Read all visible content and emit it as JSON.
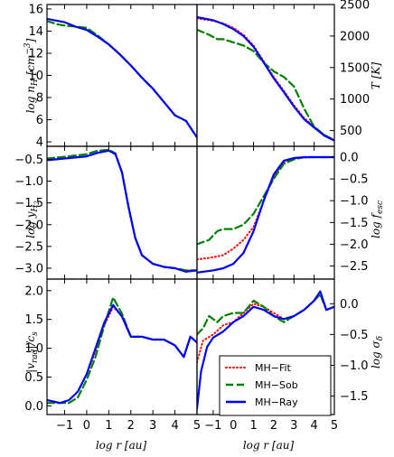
{
  "figure": {
    "legend": {
      "entries": [
        "MH−Fit",
        "MH−Sob",
        "MH−Ray"
      ],
      "placement": "lower-right of bottom-right panel"
    },
    "colors": {
      "Fit": "#ff0000",
      "Sob": "#008000",
      "Ray": "#0000ff"
    }
  },
  "chart_data": [
    {
      "type": "line",
      "panel": "top-left",
      "ylabel": "log n_H [cm^-3]",
      "xlim": [
        -1.8,
        5
      ],
      "ylim": [
        3.6,
        16.4
      ],
      "yticks": [
        4,
        6,
        8,
        10,
        12,
        14,
        16
      ],
      "ytick_labels": [
        "4",
        "6",
        "8",
        "10",
        "12",
        "14",
        "16"
      ],
      "series": [
        {
          "name": "MH−Fit",
          "style": "dotted",
          "x": [
            -1.8,
            -1,
            -0.5,
            0,
            0.5,
            1,
            1.5,
            2,
            2.5,
            3,
            3.5,
            4,
            4.5,
            5
          ],
          "y": [
            15.1,
            14.8,
            14.4,
            14.1,
            13.5,
            12.8,
            11.9,
            10.9,
            9.8,
            8.8,
            7.6,
            6.4,
            5.9,
            4.4
          ]
        },
        {
          "name": "MH−Sob",
          "style": "dashed",
          "x": [
            -1.8,
            -1.3,
            -1,
            -0.5,
            0,
            0.5,
            1,
            1.5,
            2,
            2.5,
            3,
            3.5,
            4,
            4.5,
            5
          ],
          "y": [
            14.9,
            14.6,
            14.5,
            14.4,
            14.3,
            13.6,
            12.8,
            11.9,
            10.9,
            9.8,
            8.8,
            7.6,
            6.4,
            5.9,
            4.4
          ]
        },
        {
          "name": "MH−Ray",
          "style": "solid",
          "x": [
            -1.8,
            -1,
            -0.5,
            0,
            0.5,
            1,
            1.5,
            2,
            2.5,
            3,
            3.5,
            4,
            4.5,
            5
          ],
          "y": [
            15.1,
            14.8,
            14.4,
            14.1,
            13.5,
            12.8,
            11.9,
            10.9,
            9.8,
            8.8,
            7.6,
            6.4,
            5.9,
            4.4
          ]
        }
      ]
    },
    {
      "type": "line",
      "panel": "top-right",
      "ylabel": "T [K]",
      "xlim": [
        -1.8,
        5
      ],
      "ylim": [
        250,
        2500
      ],
      "yticks": [
        500,
        1000,
        1500,
        2000,
        2500
      ],
      "ytick_labels": [
        "500",
        "1000",
        "1500",
        "2000",
        "2500"
      ],
      "series": [
        {
          "name": "MH−Fit",
          "style": "dotted",
          "x": [
            -1.8,
            -1,
            -0.5,
            0,
            0.5,
            1,
            1.5,
            2,
            2.5,
            3,
            3.5,
            4,
            4.5,
            5
          ],
          "y": [
            2280,
            2240,
            2200,
            2130,
            2020,
            1850,
            1600,
            1350,
            1130,
            900,
            700,
            560,
            430,
            350
          ]
        },
        {
          "name": "MH−Sob",
          "style": "dashed",
          "x": [
            -1.8,
            -1.2,
            -0.8,
            -0.5,
            0,
            0.5,
            1,
            1.5,
            2,
            2.5,
            3,
            3.5,
            4,
            4.5,
            5
          ],
          "y": [
            2100,
            2020,
            1950,
            1950,
            1900,
            1850,
            1760,
            1580,
            1440,
            1350,
            1200,
            850,
            560,
            430,
            350
          ]
        },
        {
          "name": "MH−Ray",
          "style": "solid",
          "x": [
            -1.8,
            -1,
            -0.5,
            0,
            0.5,
            1,
            1.5,
            2,
            2.5,
            3,
            3.5,
            4,
            4.5,
            5
          ],
          "y": [
            2300,
            2250,
            2190,
            2110,
            2000,
            1830,
            1580,
            1330,
            1110,
            880,
            680,
            550,
            420,
            340
          ]
        }
      ]
    },
    {
      "type": "line",
      "panel": "middle-left",
      "ylabel": "log y_H2",
      "xlim": [
        -1.8,
        5
      ],
      "ylim": [
        -3.25,
        -0.2
      ],
      "yticks": [
        -3.0,
        -2.5,
        -2.0,
        -1.5,
        -1.0,
        -0.5
      ],
      "ytick_labels": [
        "−3.0",
        "−2.5",
        "−2.0",
        "−1.5",
        "−1.0",
        "−0.5"
      ],
      "series": [
        {
          "name": "MH−Fit",
          "style": "dotted",
          "x": [
            -1.8,
            -1,
            0,
            0.5,
            1,
            1.3,
            1.6,
            1.9,
            2.2,
            2.5,
            3,
            3.5,
            4,
            4.5,
            5
          ],
          "y": [
            -0.52,
            -0.48,
            -0.43,
            -0.35,
            -0.3,
            -0.38,
            -0.8,
            -1.6,
            -2.3,
            -2.7,
            -2.9,
            -2.97,
            -3.0,
            -3.05,
            -3.05
          ]
        },
        {
          "name": "MH−Sob",
          "style": "dashed",
          "x": [
            -1.8,
            -1,
            0,
            0.5,
            1,
            1.3,
            1.6,
            1.9,
            2.2,
            2.5,
            3,
            3.5,
            4,
            4.5,
            5
          ],
          "y": [
            -0.48,
            -0.44,
            -0.38,
            -0.3,
            -0.28,
            -0.36,
            -0.8,
            -1.6,
            -2.3,
            -2.7,
            -2.9,
            -2.97,
            -3.0,
            -3.05,
            -3.05
          ]
        },
        {
          "name": "MH−Ray",
          "style": "solid",
          "x": [
            -1.8,
            -1,
            0,
            0.5,
            1,
            1.3,
            1.6,
            1.9,
            2.2,
            2.5,
            3,
            3.5,
            4,
            4.5,
            5
          ],
          "y": [
            -0.52,
            -0.48,
            -0.43,
            -0.35,
            -0.3,
            -0.38,
            -0.8,
            -1.6,
            -2.3,
            -2.7,
            -2.9,
            -2.97,
            -3.0,
            -3.08,
            -3.05
          ]
        }
      ]
    },
    {
      "type": "line",
      "panel": "middle-right",
      "ylabel": "log f_esc",
      "xlim": [
        -1.8,
        5
      ],
      "ylim": [
        -2.8,
        0.25
      ],
      "yticks": [
        -2.5,
        -2.0,
        -1.5,
        -1.0,
        -0.5,
        0.0
      ],
      "ytick_labels": [
        "−2.5",
        "−2.0",
        "−1.5",
        "−1.0",
        "−0.5",
        "0.0"
      ],
      "series": [
        {
          "name": "MH−Fit",
          "style": "dotted",
          "x": [
            -1.8,
            -1,
            -0.5,
            0,
            0.5,
            1,
            1.5,
            2,
            2.5,
            3,
            3.5,
            4,
            4.5,
            5
          ],
          "y": [
            -2.35,
            -2.3,
            -2.25,
            -2.1,
            -1.9,
            -1.6,
            -1.0,
            -0.45,
            -0.1,
            -0.03,
            -0.01,
            0,
            0,
            0
          ]
        },
        {
          "name": "MH−Sob",
          "style": "dashed",
          "x": [
            -1.8,
            -1.2,
            -0.8,
            -0.5,
            0,
            0.5,
            1,
            1.5,
            2,
            2.5,
            3,
            3.5,
            4,
            5
          ],
          "y": [
            -2.0,
            -1.9,
            -1.7,
            -1.65,
            -1.65,
            -1.55,
            -1.3,
            -0.9,
            -0.5,
            -0.15,
            -0.05,
            0,
            0,
            0
          ]
        },
        {
          "name": "MH−Ray",
          "style": "solid",
          "x": [
            -1.8,
            -1,
            -0.5,
            0,
            0.5,
            1,
            1.5,
            2,
            2.5,
            3,
            3.5,
            4,
            4.5,
            5
          ],
          "y": [
            -2.65,
            -2.6,
            -2.55,
            -2.45,
            -2.2,
            -1.7,
            -1.0,
            -0.4,
            -0.08,
            -0.02,
            0,
            0,
            0,
            0
          ]
        }
      ]
    },
    {
      "type": "line",
      "panel": "bottom-left",
      "ylabel": "|v_rad|/c_s",
      "xlabel": "log r [au]",
      "xlim": [
        -1.8,
        5
      ],
      "ylim": [
        -0.15,
        2.2
      ],
      "xticks": [
        -1,
        0,
        1,
        2,
        3,
        4,
        5
      ],
      "xtick_labels": [
        "−1",
        "0",
        "1",
        "2",
        "3",
        "4",
        "5"
      ],
      "yticks": [
        0.0,
        0.5,
        1.0,
        1.5,
        2.0
      ],
      "ytick_labels": [
        "0.0",
        "0.5",
        "1.0",
        "1.5",
        "2.0"
      ],
      "series": [
        {
          "name": "MH−Fit",
          "style": "dotted",
          "x": [
            -1.8,
            -1.2,
            -0.8,
            -0.4,
            0,
            0.4,
            0.8,
            1.2,
            1.6,
            2,
            2.5,
            3,
            3.5,
            4,
            4.4,
            4.7,
            5
          ],
          "y": [
            0.1,
            0.05,
            0.1,
            0.25,
            0.55,
            0.95,
            1.4,
            1.72,
            1.55,
            1.2,
            1.2,
            1.15,
            1.15,
            1.05,
            0.85,
            1.2,
            1.1
          ]
        },
        {
          "name": "MH−Sob",
          "style": "dashed",
          "x": [
            -1.8,
            -1.2,
            -0.8,
            -0.4,
            0,
            0.4,
            0.8,
            1.2,
            1.6,
            2,
            2.5,
            3,
            3.5,
            4,
            4.4,
            4.7,
            5
          ],
          "y": [
            0.05,
            0.05,
            0.05,
            0.15,
            0.45,
            0.85,
            1.4,
            1.88,
            1.6,
            1.2,
            1.2,
            1.15,
            1.15,
            1.05,
            0.85,
            1.2,
            1.1
          ]
        },
        {
          "name": "MH−Ray",
          "style": "solid",
          "x": [
            -1.8,
            -1.2,
            -0.8,
            -0.4,
            0,
            0.4,
            0.8,
            1.2,
            1.6,
            2,
            2.5,
            3,
            3.5,
            4,
            4.4,
            4.7,
            5
          ],
          "y": [
            0.1,
            0.05,
            0.1,
            0.25,
            0.55,
            1.0,
            1.45,
            1.75,
            1.55,
            1.2,
            1.2,
            1.15,
            1.15,
            1.05,
            0.85,
            1.2,
            1.1
          ]
        }
      ]
    },
    {
      "type": "line",
      "panel": "bottom-right",
      "ylabel": "log σ_δ",
      "xlabel": "log r [au]",
      "xlim": [
        -1.8,
        5
      ],
      "ylim": [
        -1.8,
        0.4
      ],
      "xticks": [
        -1,
        0,
        1,
        2,
        3,
        4,
        5
      ],
      "xtick_labels": [
        "−1",
        "0",
        "1",
        "2",
        "3",
        "4",
        "5"
      ],
      "yticks": [
        -1.5,
        -1.0,
        -0.5,
        0.0
      ],
      "ytick_labels": [
        "−1.5",
        "−1.0",
        "−0.5",
        "0.0"
      ],
      "series": [
        {
          "name": "MH−Fit",
          "style": "dotted",
          "x": [
            -1.8,
            -1.5,
            -1,
            -0.5,
            0,
            0.5,
            1,
            1.5,
            2,
            2.5,
            3,
            3.5,
            4,
            4.3,
            4.6,
            5
          ],
          "y": [
            -0.95,
            -0.6,
            -0.5,
            -0.35,
            -0.3,
            -0.15,
            0.0,
            -0.05,
            -0.15,
            -0.25,
            -0.2,
            -0.1,
            0.05,
            0.15,
            -0.1,
            -0.05
          ]
        },
        {
          "name": "MH−Sob",
          "style": "dashed",
          "x": [
            -1.8,
            -1.5,
            -1.2,
            -0.8,
            -0.5,
            0,
            0.5,
            1,
            1.5,
            2,
            2.5,
            3,
            3.5,
            4,
            4.3,
            4.6,
            5
          ],
          "y": [
            -0.5,
            -0.4,
            -0.2,
            -0.3,
            -0.2,
            -0.15,
            -0.15,
            0.05,
            -0.05,
            -0.2,
            -0.3,
            -0.2,
            -0.1,
            0.05,
            0.15,
            -0.1,
            -0.05
          ]
        },
        {
          "name": "MH−Ray",
          "style": "solid",
          "x": [
            -1.8,
            -1.6,
            -1.3,
            -1,
            -0.5,
            0,
            0.5,
            1,
            1.5,
            2,
            2.5,
            3,
            3.5,
            4,
            4.3,
            4.6,
            5
          ],
          "y": [
            -1.7,
            -1.1,
            -0.7,
            -0.55,
            -0.45,
            -0.3,
            -0.2,
            -0.05,
            -0.1,
            -0.2,
            -0.25,
            -0.2,
            -0.1,
            0.05,
            0.2,
            -0.1,
            -0.05
          ]
        }
      ]
    }
  ]
}
